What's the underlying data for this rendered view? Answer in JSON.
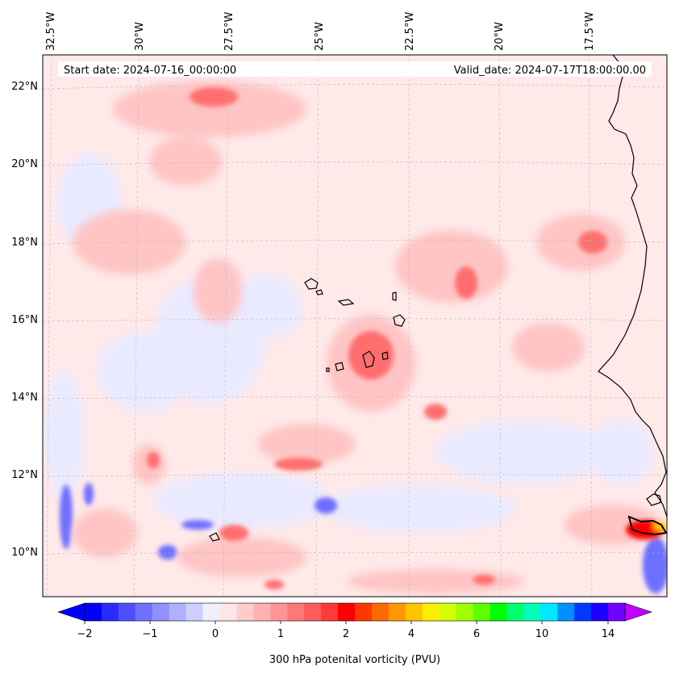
{
  "map": {
    "start_label": "Start date: 2024-07-16_00:00:00",
    "valid_label": "Valid_date: 2024-07-17T18:00:00.00",
    "lon_labels": [
      "32.5°W",
      "30°W",
      "27.5°W",
      "25°W",
      "22.5°W",
      "20°W",
      "17.5°W"
    ],
    "lat_labels": [
      "22°N",
      "20°N",
      "18°N",
      "16°N",
      "14°N",
      "12°N",
      "10°N"
    ],
    "coast_color": "#000000"
  },
  "colorbar": {
    "title": "300 hPa potenital vorticity (PVU)",
    "tick_labels": [
      "−2",
      "−1",
      "0",
      "1",
      "2",
      "4",
      "6",
      "10",
      "14"
    ],
    "colors": [
      "#0000ff",
      "#2a2aff",
      "#4f4fff",
      "#7070ff",
      "#9090ff",
      "#b0b0ff",
      "#cfcfff",
      "#efefff",
      "#ffe6e6",
      "#ffcccc",
      "#ffb0b0",
      "#ff9494",
      "#ff7878",
      "#ff5c5c",
      "#ff3a3a",
      "#ff0000",
      "#ff3800",
      "#ff6a00",
      "#ff9800",
      "#ffc400",
      "#ffee00",
      "#d4ff00",
      "#a0ff00",
      "#5cff00",
      "#00ff00",
      "#00ff70",
      "#00ffbb",
      "#00e8ff",
      "#0090ff",
      "#0038ff",
      "#1e00ff",
      "#7000ff"
    ],
    "low_color": "#0000ff",
    "high_color": "#c000ff"
  }
}
